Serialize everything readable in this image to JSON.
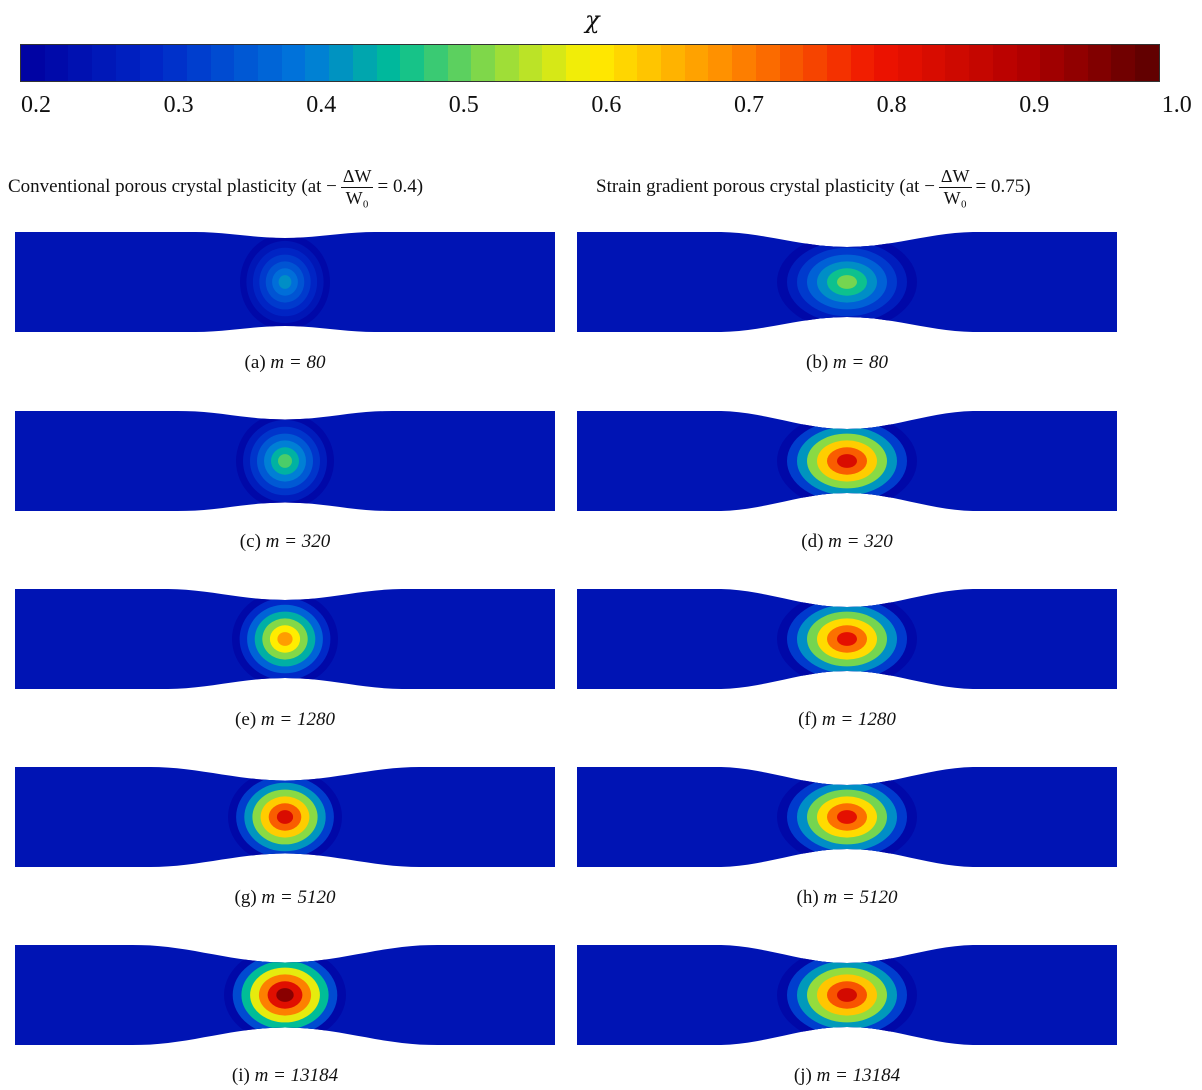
{
  "colorbar": {
    "symbol": "χ",
    "ticks": [
      "0.2",
      "0.3",
      "0.4",
      "0.5",
      "0.6",
      "0.7",
      "0.8",
      "0.9",
      "1.0"
    ],
    "range": [
      0.2,
      1.0
    ],
    "colormap": "jet"
  },
  "columns": [
    {
      "title_prefix": "Conventional porous crystal plasticity (at −",
      "frac_num": "ΔW",
      "frac_den": "W₀",
      "title_suffix": "= 0.4)"
    },
    {
      "title_prefix": "Strain gradient porous crystal plasticity (at −",
      "frac_num": "ΔW",
      "frac_den": "W₀",
      "title_suffix": "= 0.75)"
    }
  ],
  "panels": [
    {
      "id": "a",
      "caption": "(a) m = 80",
      "label": "(a)",
      "m": "m = 80",
      "neck_depth": 0.12,
      "peak_chi": 0.42
    },
    {
      "id": "b",
      "caption": "(b) m = 80",
      "label": "(b)",
      "m": "m = 80",
      "neck_depth": 0.3,
      "peak_chi": 0.52
    },
    {
      "id": "c",
      "caption": "(c) m = 320",
      "label": "(c)",
      "m": "m = 320",
      "neck_depth": 0.17,
      "peak_chi": 0.5
    },
    {
      "id": "d",
      "caption": "(d) m = 320",
      "label": "(d)",
      "m": "m = 320",
      "neck_depth": 0.36,
      "peak_chi": 0.84
    },
    {
      "id": "e",
      "caption": "(e) m = 1280",
      "label": "(e)",
      "m": "m = 1280",
      "neck_depth": 0.22,
      "peak_chi": 0.68
    },
    {
      "id": "f",
      "caption": "(f) m = 1280",
      "label": "(f)",
      "m": "m = 1280",
      "neck_depth": 0.36,
      "peak_chi": 0.82
    },
    {
      "id": "g",
      "caption": "(g) m = 5120",
      "label": "(g)",
      "m": "m = 5120",
      "neck_depth": 0.27,
      "peak_chi": 0.84
    },
    {
      "id": "h",
      "caption": "(h) m = 5120",
      "label": "(h)",
      "m": "m = 5120",
      "neck_depth": 0.36,
      "peak_chi": 0.82
    },
    {
      "id": "i",
      "caption": "(i) m = 13184",
      "label": "(i)",
      "m": "m = 13184",
      "neck_depth": 0.35,
      "peak_chi": 0.95
    },
    {
      "id": "j",
      "caption": "(j) m = 13184",
      "label": "(j)",
      "m": "m = 13184",
      "neck_depth": 0.36,
      "peak_chi": 0.85
    }
  ]
}
